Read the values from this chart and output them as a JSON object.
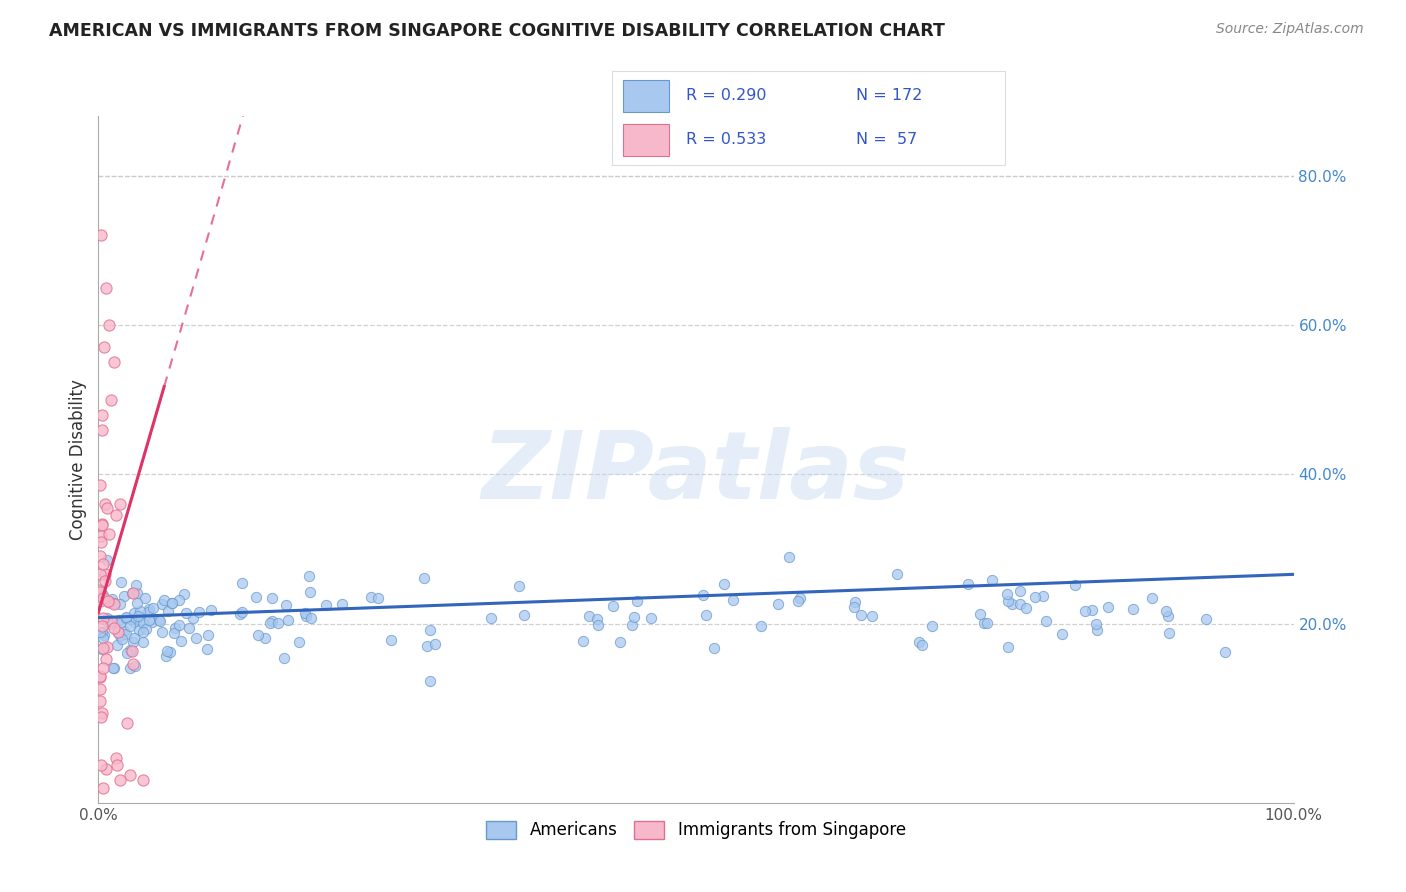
{
  "title": "AMERICAN VS IMMIGRANTS FROM SINGAPORE COGNITIVE DISABILITY CORRELATION CHART",
  "source": "Source: ZipAtlas.com",
  "ylabel": "Cognitive Disability",
  "watermark": "ZIPatlas",
  "xlim": [
    0.0,
    1.0
  ],
  "ylim": [
    -0.04,
    0.88
  ],
  "ytick_right_vals": [
    0.2,
    0.4,
    0.6,
    0.8
  ],
  "ytick_right_labels": [
    "20.0%",
    "40.0%",
    "60.0%",
    "80.0%"
  ],
  "grid_color": "#cccccc",
  "background_color": "#ffffff",
  "american_color": "#a8c8f0",
  "american_edge": "#6699cc",
  "singapore_color": "#f8b8cc",
  "singapore_edge": "#e07090",
  "american_R": 0.29,
  "american_N": 172,
  "singapore_R": 0.533,
  "singapore_N": 57,
  "trend_blue": "#3366bb",
  "trend_pink": "#dd3366",
  "legend_label_american": "Americans",
  "legend_label_singapore": "Immigrants from Singapore",
  "title_color": "#222222",
  "source_color": "#888888",
  "legend_R_color": "#3355cc",
  "legend_N_color": "#3355cc"
}
